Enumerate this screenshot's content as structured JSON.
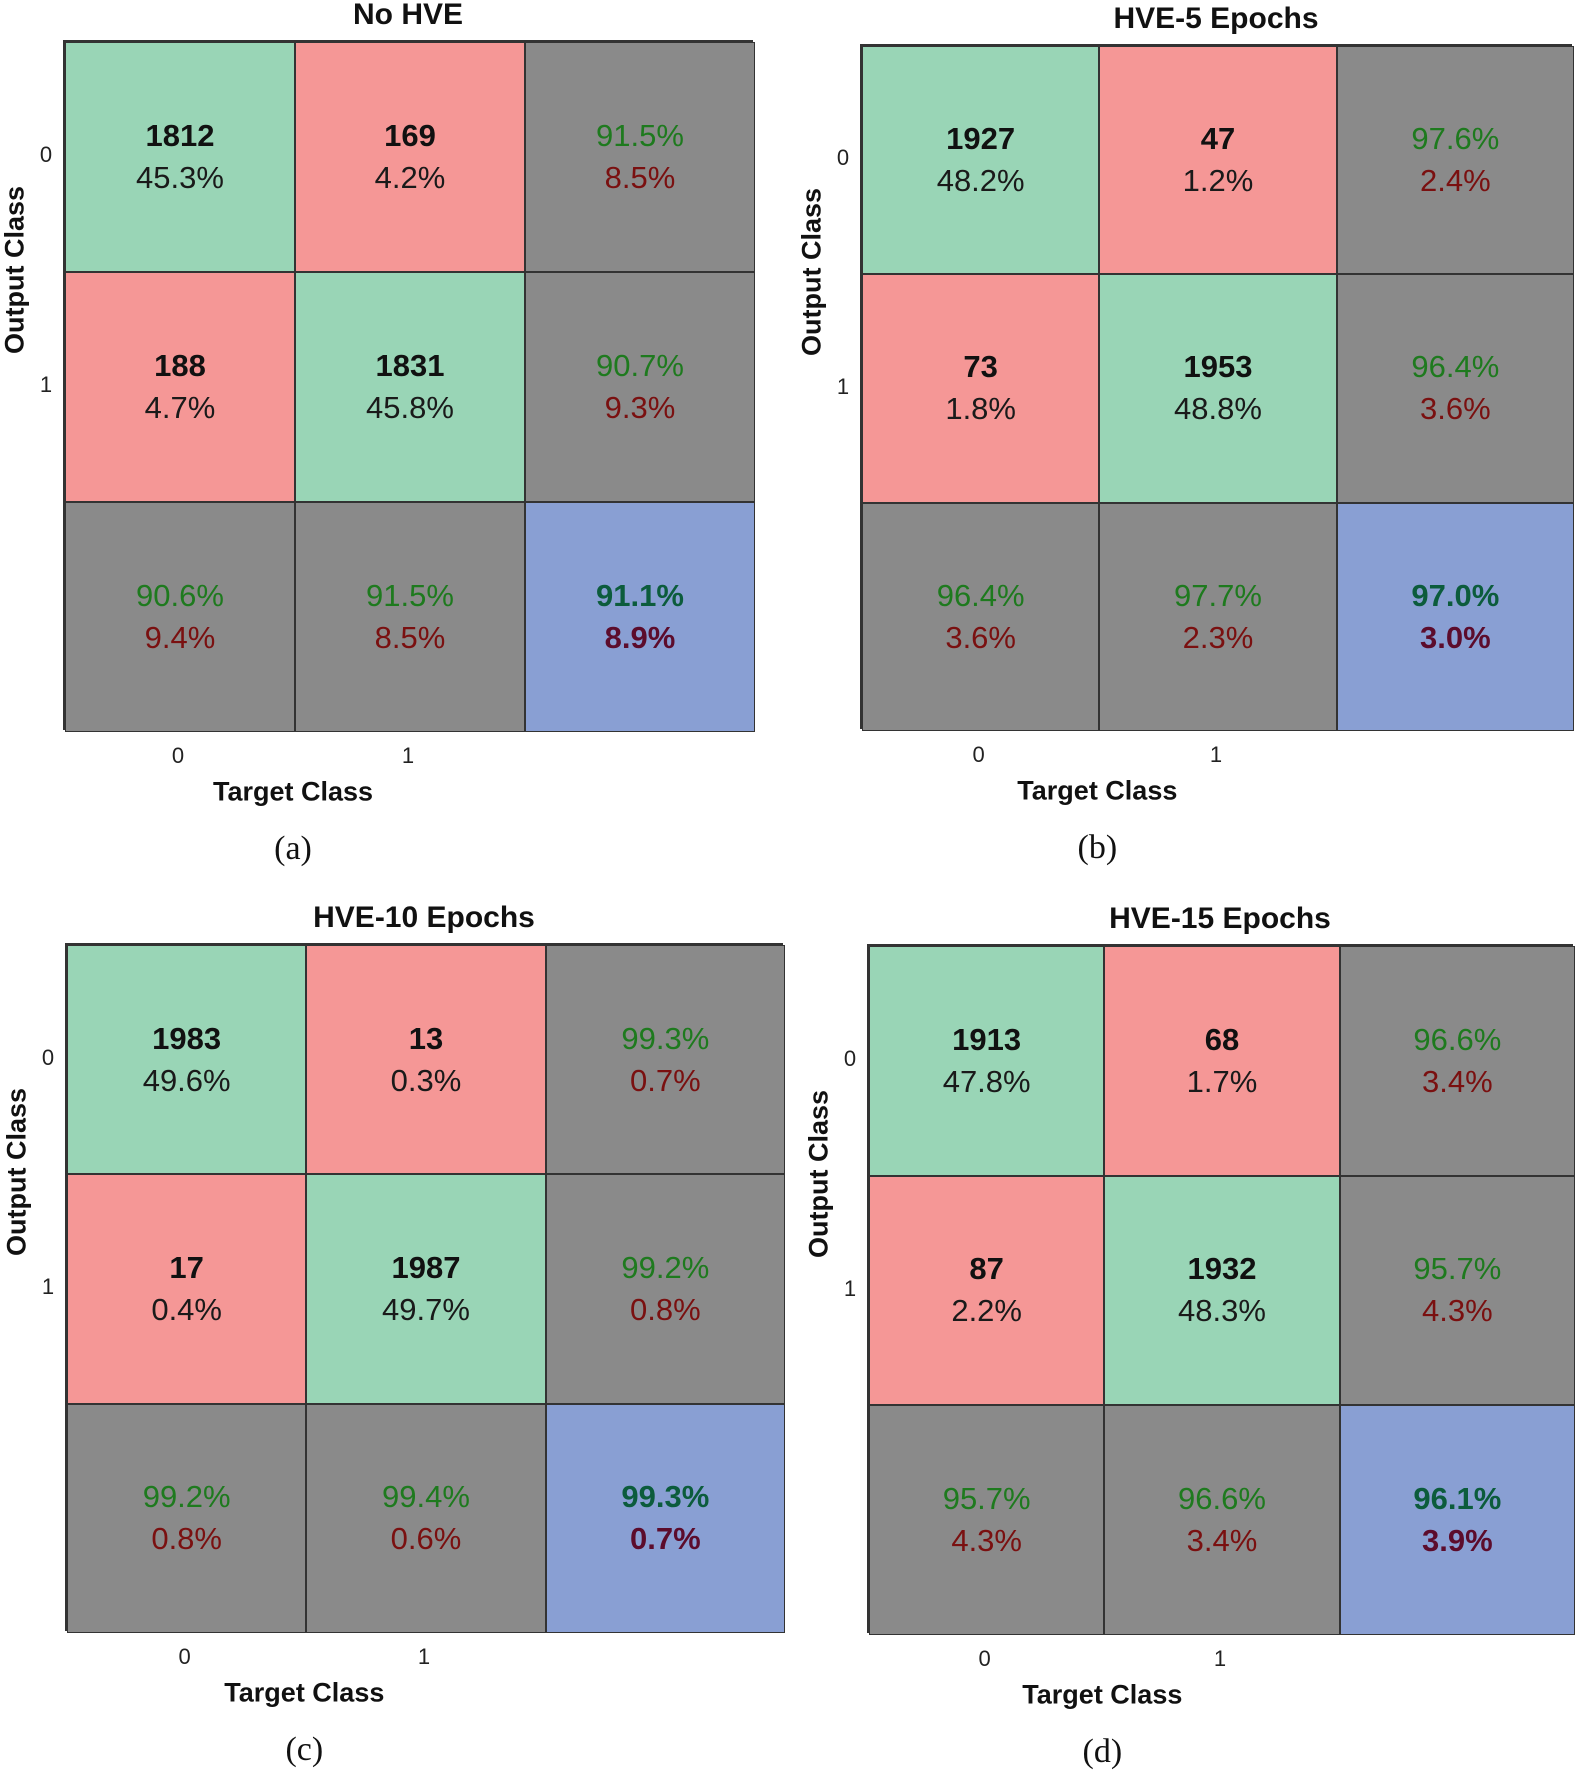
{
  "colors": {
    "correct": "#99d5b6",
    "incorrect": "#f59796",
    "summary": "#8a8a8a",
    "overall": "#899fd3",
    "good_text": "#1e7a1e",
    "bad_text": "#7a1010"
  },
  "chart_data": [
    {
      "type": "heatmap",
      "subplot": "(a)",
      "title": "No HVE",
      "xlabel": "Target Class",
      "ylabel": "Output Class",
      "x_ticks": [
        "0",
        "1"
      ],
      "y_ticks": [
        "0",
        "1"
      ],
      "counts": [
        [
          1812,
          169
        ],
        [
          188,
          1831
        ]
      ],
      "count_pct": [
        [
          "45.3%",
          "4.2%"
        ],
        [
          "4.7%",
          "45.8%"
        ]
      ],
      "row_summary": [
        [
          "91.5%",
          "8.5%"
        ],
        [
          "90.7%",
          "9.3%"
        ]
      ],
      "col_summary": [
        [
          "90.6%",
          "9.4%"
        ],
        [
          "91.5%",
          "8.5%"
        ]
      ],
      "overall": [
        "91.1%",
        "8.9%"
      ]
    },
    {
      "type": "heatmap",
      "subplot": "(b)",
      "title": "HVE-5 Epochs",
      "xlabel": "Target Class",
      "ylabel": "Output Class",
      "x_ticks": [
        "0",
        "1"
      ],
      "y_ticks": [
        "0",
        "1"
      ],
      "counts": [
        [
          1927,
          47
        ],
        [
          73,
          1953
        ]
      ],
      "count_pct": [
        [
          "48.2%",
          "1.2%"
        ],
        [
          "1.8%",
          "48.8%"
        ]
      ],
      "row_summary": [
        [
          "97.6%",
          "2.4%"
        ],
        [
          "96.4%",
          "3.6%"
        ]
      ],
      "col_summary": [
        [
          "96.4%",
          "3.6%"
        ],
        [
          "97.7%",
          "2.3%"
        ]
      ],
      "overall": [
        "97.0%",
        "3.0%"
      ]
    },
    {
      "type": "heatmap",
      "subplot": "(c)",
      "title": "HVE-10 Epochs",
      "xlabel": "Target Class",
      "ylabel": "Output Class",
      "x_ticks": [
        "0",
        "1"
      ],
      "y_ticks": [
        "0",
        "1"
      ],
      "counts": [
        [
          1983,
          13
        ],
        [
          17,
          1987
        ]
      ],
      "count_pct": [
        [
          "49.6%",
          "0.3%"
        ],
        [
          "0.4%",
          "49.7%"
        ]
      ],
      "row_summary": [
        [
          "99.3%",
          "0.7%"
        ],
        [
          "99.2%",
          "0.8%"
        ]
      ],
      "col_summary": [
        [
          "99.2%",
          "0.8%"
        ],
        [
          "99.4%",
          "0.6%"
        ]
      ],
      "overall": [
        "99.3%",
        "0.7%"
      ]
    },
    {
      "type": "heatmap",
      "subplot": "(d)",
      "title": "HVE-15 Epochs",
      "xlabel": "Target Class",
      "ylabel": "Output Class",
      "x_ticks": [
        "0",
        "1"
      ],
      "y_ticks": [
        "0",
        "1"
      ],
      "counts": [
        [
          1913,
          68
        ],
        [
          87,
          1932
        ]
      ],
      "count_pct": [
        [
          "47.8%",
          "1.7%"
        ],
        [
          "2.2%",
          "48.3%"
        ]
      ],
      "row_summary": [
        [
          "96.6%",
          "3.4%"
        ],
        [
          "95.7%",
          "4.3%"
        ]
      ],
      "col_summary": [
        [
          "95.7%",
          "4.3%"
        ],
        [
          "96.6%",
          "3.4%"
        ]
      ],
      "overall": [
        "96.1%",
        "3.9%"
      ]
    }
  ]
}
